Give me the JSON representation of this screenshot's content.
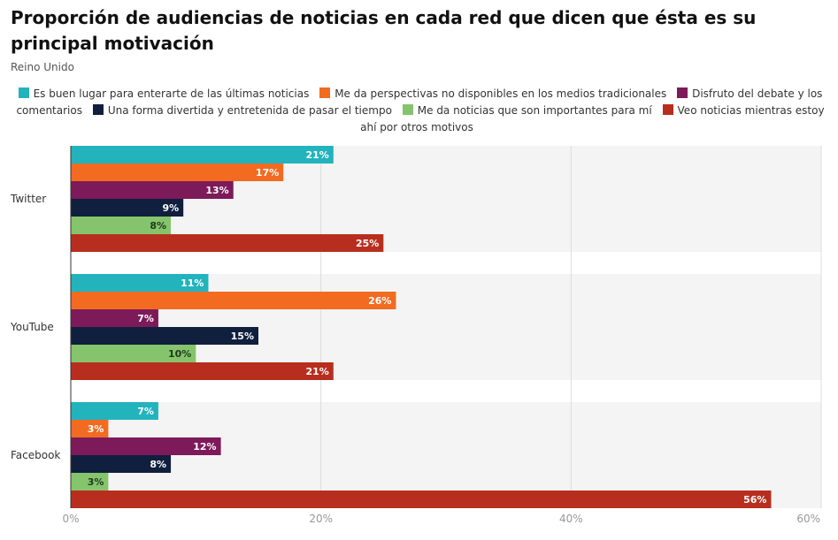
{
  "title": "Proporción de audiencias de noticias en cada red que dicen que ésta es su principal motivación",
  "subtitle": "Reino Unido",
  "chart_data": {
    "type": "bar",
    "orientation": "horizontal",
    "title": "Proporción de audiencias de noticias en cada red que dicen que ésta es su principal motivación",
    "subtitle": "Reino Unido",
    "categories": [
      "Twitter",
      "YouTube",
      "Facebook"
    ],
    "series": [
      {
        "name": "Es buen lugar para enterarte de las últimas noticias",
        "color": "#22b3bd",
        "label_color": "#ffffff",
        "values": [
          21,
          11,
          7
        ]
      },
      {
        "name": "Me da perspectivas no disponibles en los medios tradicionales",
        "color": "#f26b21",
        "label_color": "#ffffff",
        "values": [
          17,
          26,
          3
        ]
      },
      {
        "name": "Disfruto del debate y los comentarios",
        "color": "#7d1a5a",
        "label_color": "#ffffff",
        "values": [
          13,
          7,
          12
        ]
      },
      {
        "name": "Una forma divertida y entretenida de pasar el tiempo",
        "color": "#0f1f3d",
        "label_color": "#ffffff",
        "values": [
          9,
          15,
          8
        ]
      },
      {
        "name": "Me da noticias que son importantes para mí",
        "color": "#85c46c",
        "label_color": "#1f3a1a",
        "values": [
          8,
          10,
          3
        ]
      },
      {
        "name": "Veo noticias mientras estoy ahí por otros motivos",
        "color": "#b82e1e",
        "label_color": "#ffffff",
        "values": [
          25,
          21,
          56
        ]
      }
    ],
    "value_suffix": "%",
    "xlim": [
      0,
      60
    ],
    "x_ticks": [
      "0%",
      "20%",
      "40%",
      "60%"
    ],
    "grid": true,
    "legend_position": "top"
  }
}
